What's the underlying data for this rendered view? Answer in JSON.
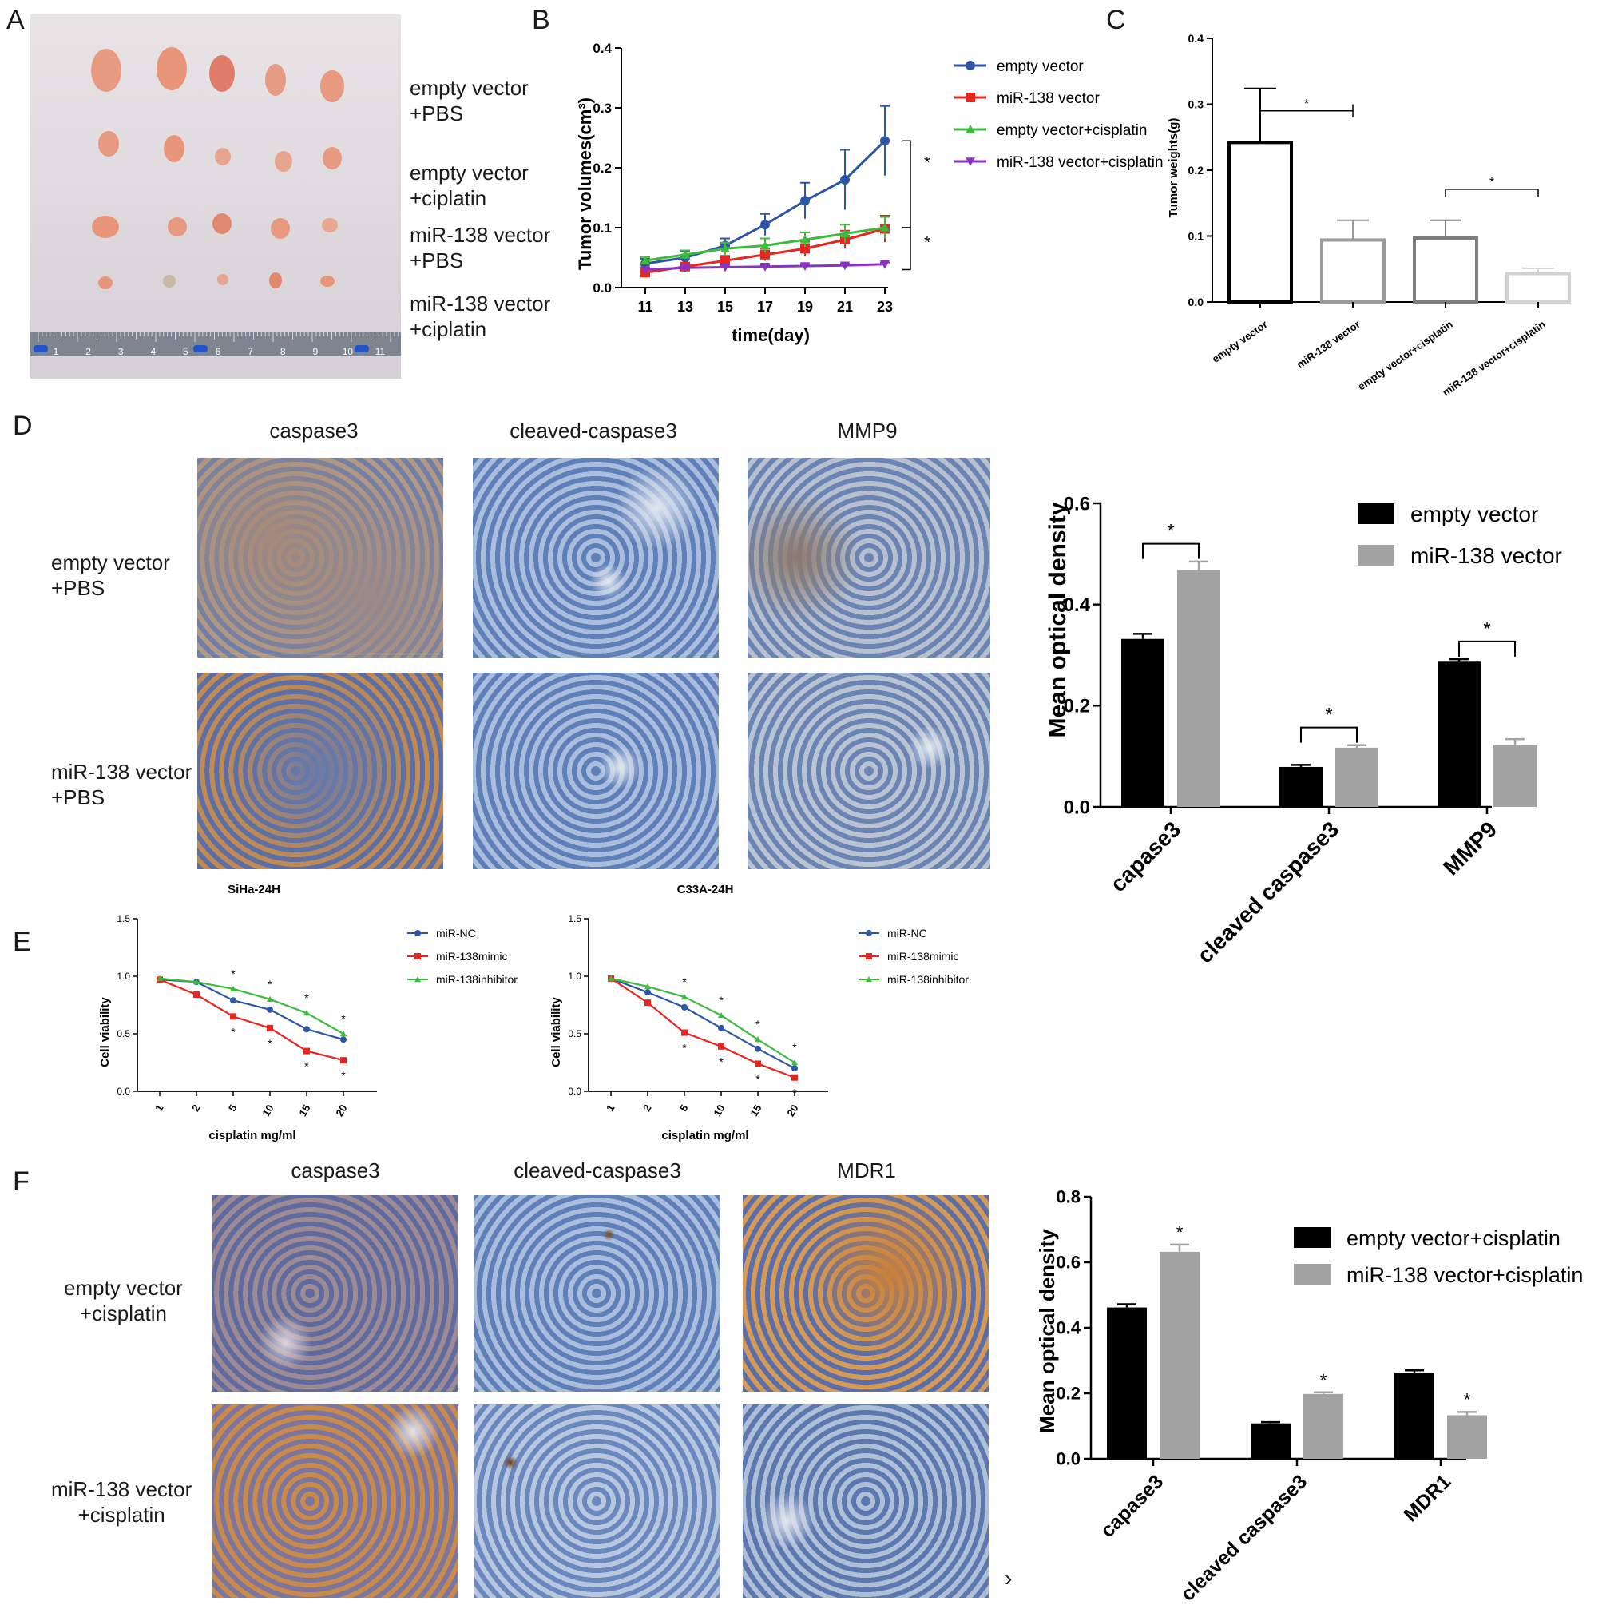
{
  "panels": {
    "a": {
      "letter": "A",
      "groups": [
        "empty vector\n+PBS",
        "empty vector\n+ciplatin",
        "miR-138 vector\n+PBS",
        "miR-138 vector\n+ciplatin"
      ],
      "ruler_numbers": [
        "1",
        "2",
        "3",
        "4",
        "5",
        "6",
        "7",
        "8",
        "9",
        "10",
        "11"
      ]
    },
    "b": {
      "letter": "B",
      "star": "*"
    },
    "c": {
      "letter": "C",
      "star": "*"
    },
    "d": {
      "letter": "D",
      "columns": [
        "caspase3",
        "cleaved-caspase3",
        "MMP9"
      ],
      "rows": [
        "empty vector\n+PBS",
        "miR-138 vector\n+PBS"
      ]
    },
    "e": {
      "letter": "E"
    },
    "f": {
      "letter": "F",
      "columns": [
        "caspase3",
        "cleaved-caspase3",
        "MDR1"
      ],
      "rows": [
        "empty vector\n+cisplatin",
        "miR-138 vector\n+cisplatin"
      ],
      "stray_glyph": "›"
    }
  },
  "colors": {
    "blue": "#2e56a6",
    "red": "#e8261f",
    "green": "#3dbb3d",
    "purple": "#8a33c2",
    "black_bar": "#000000",
    "grey_bar": "#a3a3a3",
    "ihc_blue": "#5f7fb8",
    "ihc_brown": "#b88048",
    "tumor": "#e79a80"
  },
  "chart_data": [
    {
      "id": "B",
      "type": "line",
      "x": [
        11,
        13,
        15,
        17,
        19,
        21,
        23
      ],
      "xticks": [
        "11",
        "13",
        "15",
        "17",
        "19",
        "21",
        "23"
      ],
      "xlabel": "time(day)",
      "ylabel": "Tumor volumes(cm³)",
      "ylim": [
        0,
        0.4
      ],
      "yticks": [
        "0.0",
        "0.1",
        "0.2",
        "0.3",
        "0.4"
      ],
      "series": [
        {
          "name": "empty vector",
          "color": "#2e56a6",
          "marker": "circle",
          "values": [
            0.04,
            0.05,
            0.07,
            0.105,
            0.145,
            0.18,
            0.245
          ],
          "err": [
            0.008,
            0.01,
            0.012,
            0.018,
            0.03,
            0.05,
            0.058
          ]
        },
        {
          "name": "miR-138 vector",
          "color": "#e8261f",
          "marker": "square",
          "values": [
            0.025,
            0.035,
            0.045,
            0.055,
            0.065,
            0.08,
            0.098
          ],
          "err": [
            0.005,
            0.006,
            0.008,
            0.01,
            0.012,
            0.015,
            0.022
          ]
        },
        {
          "name": "empty vector+cisplatin",
          "color": "#3dbb3d",
          "marker": "triangle",
          "values": [
            0.045,
            0.055,
            0.065,
            0.07,
            0.08,
            0.09,
            0.1
          ],
          "err": [
            0.006,
            0.007,
            0.01,
            0.012,
            0.012,
            0.015,
            0.018
          ]
        },
        {
          "name": "miR-138 vector+cisplatin",
          "color": "#8a33c2",
          "marker": "triangle-down",
          "values": [
            0.03,
            0.033,
            0.034,
            0.035,
            0.036,
            0.037,
            0.039
          ],
          "err": [
            0.003,
            0.003,
            0.003,
            0.003,
            0.003,
            0.003,
            0.003
          ]
        }
      ],
      "annotations": [
        "*",
        "*"
      ]
    },
    {
      "id": "C",
      "type": "bar",
      "categories": [
        "empty vector",
        "miR-138 vector",
        "empty vector+cisplatin",
        "miR-138 vector+cisplatin"
      ],
      "values": [
        0.242,
        0.094,
        0.097,
        0.043
      ],
      "err": [
        0.082,
        0.03,
        0.027,
        0.008
      ],
      "bar_colors": [
        "#000000",
        "#9a9a9a",
        "#7d7d7d",
        "#d2d2d2"
      ],
      "ylabel": "Tumor weights(g)",
      "ylim": [
        0,
        0.4
      ],
      "yticks": [
        "0.0",
        "0.1",
        "0.2",
        "0.3",
        "0.4"
      ],
      "annotations": [
        "*",
        "*"
      ]
    },
    {
      "id": "D",
      "type": "bar",
      "categories": [
        "capase3",
        "cleaved caspase3",
        "MMP9"
      ],
      "series": [
        {
          "name": "empty vector",
          "color": "#000000",
          "values": [
            0.332,
            0.079,
            0.287
          ],
          "err": [
            0.01,
            0.004,
            0.005
          ]
        },
        {
          "name": "miR-138 vector",
          "color": "#a3a3a3",
          "values": [
            0.468,
            0.117,
            0.122
          ],
          "err": [
            0.017,
            0.005,
            0.012
          ]
        }
      ],
      "ylabel": "Mean optical density",
      "ylim": [
        0,
        0.6
      ],
      "yticks": [
        "0.0",
        "0.2",
        "0.4",
        "0.6"
      ],
      "legend": "top-right",
      "annotations": [
        "*",
        "*",
        "*"
      ]
    },
    {
      "id": "E1",
      "type": "line",
      "title": "SiHa-24H",
      "x": [
        1,
        2,
        5,
        10,
        15,
        20
      ],
      "xticks": [
        "1",
        "2",
        "5",
        "10",
        "15",
        "20"
      ],
      "xlabel": "cisplatin mg/ml",
      "ylabel": "Cell viability",
      "ylim": [
        0,
        1.5
      ],
      "yticks": [
        "0.0",
        "0.5",
        "1.0",
        "1.5"
      ],
      "series": [
        {
          "name": "miR-NC",
          "color": "#2e56a6",
          "values": [
            0.97,
            0.95,
            0.79,
            0.71,
            0.54,
            0.45
          ]
        },
        {
          "name": "miR-138mimic",
          "color": "#e8261f",
          "values": [
            0.97,
            0.84,
            0.65,
            0.55,
            0.35,
            0.27
          ]
        },
        {
          "name": "miR-138inhibitor",
          "color": "#3dbb3d",
          "values": [
            0.98,
            0.95,
            0.89,
            0.8,
            0.68,
            0.5
          ]
        }
      ],
      "annotations": [
        "*",
        "*",
        "*",
        "*",
        "*",
        "*",
        "*",
        "*"
      ]
    },
    {
      "id": "E2",
      "type": "line",
      "title": "C33A-24H",
      "x": [
        1,
        2,
        5,
        10,
        15,
        20
      ],
      "xticks": [
        "1",
        "2",
        "5",
        "10",
        "15",
        "20"
      ],
      "xlabel": "cisplatin mg/ml",
      "ylabel": "Cell viability",
      "ylim": [
        0,
        1.5
      ],
      "yticks": [
        "0.0",
        "0.5",
        "1.0",
        "1.5"
      ],
      "series": [
        {
          "name": "miR-NC",
          "color": "#2e56a6",
          "values": [
            0.98,
            0.86,
            0.73,
            0.55,
            0.37,
            0.2
          ]
        },
        {
          "name": "miR-138mimic",
          "color": "#e8261f",
          "values": [
            0.98,
            0.77,
            0.51,
            0.39,
            0.24,
            0.12
          ]
        },
        {
          "name": "miR-138inhibitor",
          "color": "#3dbb3d",
          "values": [
            0.98,
            0.91,
            0.82,
            0.66,
            0.45,
            0.25
          ]
        }
      ],
      "annotations": [
        "*",
        "*",
        "*",
        "*",
        "*",
        "*",
        "*",
        "*"
      ]
    },
    {
      "id": "F",
      "type": "bar",
      "categories": [
        "capase3",
        "cleaved caspase3",
        "MDR1"
      ],
      "series": [
        {
          "name": "empty vector+cisplatin",
          "color": "#000000",
          "values": [
            0.462,
            0.108,
            0.262
          ],
          "err": [
            0.01,
            0.004,
            0.008
          ]
        },
        {
          "name": "miR-138 vector+cisplatin",
          "color": "#a3a3a3",
          "values": [
            0.632,
            0.198,
            0.133
          ],
          "err": [
            0.022,
            0.005,
            0.01
          ]
        }
      ],
      "ylabel": "Mean optical density",
      "ylim": [
        0,
        0.8
      ],
      "yticks": [
        "0.0",
        "0.2",
        "0.4",
        "0.6",
        "0.8"
      ],
      "legend": "top-right",
      "annotations": [
        "*",
        "*",
        "*"
      ]
    }
  ]
}
